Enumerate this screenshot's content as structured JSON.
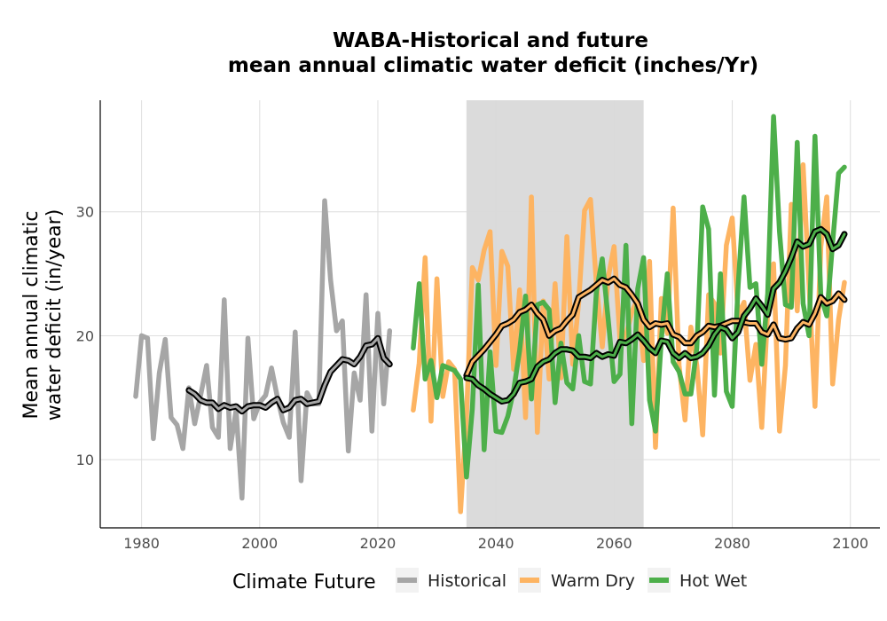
{
  "chart_data": {
    "type": "line",
    "title_line1": "WABA-Historical and future",
    "title_line2": "mean annual climatic water deficit (inches/Yr)",
    "ylabel_line1": "Mean annual climatic",
    "ylabel_line2": "water deficit (in/year)",
    "xlabel": "",
    "xlim": [
      1973,
      2105
    ],
    "ylim": [
      4.5,
      39.0
    ],
    "xticks": [
      1980,
      2000,
      2020,
      2040,
      2060,
      2080,
      2100
    ],
    "yticks": [
      10,
      20,
      30
    ],
    "grid": true,
    "shaded_period": [
      2035,
      2065
    ],
    "legend": {
      "title": "Climate Future",
      "position": "bottom",
      "items": [
        {
          "label": "Historical",
          "color": "#a6a6a6"
        },
        {
          "label": "Warm Dry",
          "color": "#fdb462"
        },
        {
          "label": "Hot Wet",
          "color": "#4daf4a"
        }
      ]
    },
    "series": [
      {
        "name": "Historical",
        "color": "#a6a6a6",
        "x": [
          1979,
          1980,
          1981,
          1982,
          1983,
          1984,
          1985,
          1986,
          1987,
          1988,
          1989,
          1990,
          1991,
          1992,
          1993,
          1994,
          1995,
          1996,
          1997,
          1998,
          1999,
          2000,
          2001,
          2002,
          2003,
          2004,
          2005,
          2006,
          2007,
          2008,
          2009,
          2010,
          2011,
          2012,
          2013,
          2014,
          2015,
          2016,
          2017,
          2018,
          2019,
          2020,
          2021,
          2022
        ],
        "values": [
          15.1,
          20.0,
          19.8,
          11.7,
          17.0,
          19.7,
          13.4,
          12.8,
          10.9,
          15.8,
          12.9,
          15.2,
          17.6,
          12.6,
          11.8,
          22.9,
          10.9,
          14.0,
          6.9,
          19.8,
          13.3,
          14.6,
          15.2,
          17.4,
          15.0,
          13.0,
          11.8,
          20.3,
          8.3,
          15.4,
          14.5,
          14.5,
          30.9,
          24.5,
          20.4,
          21.2,
          10.7,
          17.0,
          14.8,
          23.3,
          12.3,
          21.8,
          14.5,
          20.4
        ]
      },
      {
        "name": "Historical smoothed",
        "color": "#000000",
        "x": [
          1988,
          1989,
          1990,
          1991,
          1992,
          1993,
          1994,
          1995,
          1996,
          1997,
          1998,
          1999,
          2000,
          2001,
          2002,
          2003,
          2004,
          2005,
          2006,
          2007,
          2008,
          2009,
          2010,
          2011,
          2012,
          2013,
          2014,
          2015,
          2016,
          2017,
          2018,
          2019,
          2020,
          2021,
          2022
        ],
        "values": [
          15.6,
          15.3,
          14.8,
          14.6,
          14.6,
          14.1,
          14.4,
          14.2,
          14.3,
          13.9,
          14.3,
          14.4,
          14.4,
          14.2,
          14.6,
          14.9,
          14.0,
          14.2,
          14.8,
          14.9,
          14.5,
          14.6,
          14.7,
          16.0,
          17.1,
          17.6,
          18.1,
          18.0,
          17.7,
          18.3,
          19.2,
          19.3,
          19.8,
          18.2,
          17.7
        ]
      },
      {
        "name": "Warm Dry",
        "color": "#fdb462",
        "x": [
          2026,
          2027,
          2028,
          2029,
          2030,
          2031,
          2032,
          2033,
          2034,
          2035,
          2036,
          2037,
          2038,
          2039,
          2040,
          2041,
          2042,
          2043,
          2044,
          2045,
          2046,
          2047,
          2048,
          2049,
          2050,
          2051,
          2052,
          2053,
          2054,
          2055,
          2056,
          2057,
          2058,
          2059,
          2060,
          2061,
          2062,
          2063,
          2064,
          2065,
          2066,
          2067,
          2068,
          2069,
          2070,
          2071,
          2072,
          2073,
          2074,
          2075,
          2076,
          2077,
          2078,
          2079,
          2080,
          2081,
          2082,
          2083,
          2084,
          2085,
          2086,
          2087,
          2088,
          2089,
          2090,
          2091,
          2092,
          2093,
          2094,
          2095,
          2096,
          2097,
          2098,
          2099
        ],
        "values": [
          14.0,
          17.8,
          26.3,
          13.1,
          24.6,
          15.1,
          17.9,
          17.3,
          5.8,
          13.5,
          25.5,
          24.5,
          26.9,
          28.4,
          17.6,
          26.8,
          25.6,
          17.3,
          23.7,
          13.4,
          31.2,
          12.2,
          22.8,
          16.5,
          24.2,
          16.6,
          28.0,
          17.7,
          22.7,
          30.1,
          31.0,
          24.2,
          19.1,
          24.7,
          27.2,
          19.6,
          20.0,
          21.9,
          23.0,
          18.0,
          26.0,
          11.0,
          23.0,
          20.2,
          30.3,
          17.6,
          13.2,
          20.7,
          17.6,
          12.0,
          23.3,
          22.6,
          18.6,
          27.3,
          29.5,
          21.6,
          22.7,
          16.4,
          19.3,
          12.6,
          22.0,
          25.8,
          12.3,
          17.6,
          30.6,
          22.0,
          33.8,
          24.1,
          14.3,
          27.2,
          31.2,
          16.1,
          21.3,
          24.3
        ]
      },
      {
        "name": "Warm Dry smoothed",
        "color": "#000000",
        "x": [
          2035,
          2036,
          2037,
          2038,
          2039,
          2040,
          2041,
          2042,
          2043,
          2044,
          2045,
          2046,
          2047,
          2048,
          2049,
          2050,
          2051,
          2052,
          2053,
          2054,
          2055,
          2056,
          2057,
          2058,
          2059,
          2060,
          2061,
          2062,
          2063,
          2064,
          2065,
          2066,
          2067,
          2068,
          2069,
          2070,
          2071,
          2072,
          2073,
          2074,
          2075,
          2076,
          2077,
          2078,
          2079,
          2080,
          2081,
          2082,
          2083,
          2084,
          2085,
          2086,
          2087,
          2088,
          2089,
          2090,
          2091,
          2092,
          2093,
          2094,
          2095,
          2096,
          2097,
          2098,
          2099
        ],
        "values": [
          16.8,
          17.9,
          18.4,
          18.9,
          19.5,
          20.1,
          20.8,
          21.0,
          21.3,
          21.9,
          22.1,
          22.5,
          21.8,
          21.3,
          20.0,
          20.4,
          20.6,
          21.2,
          21.7,
          23.1,
          23.4,
          23.7,
          24.1,
          24.5,
          24.3,
          24.6,
          24.1,
          23.9,
          23.3,
          22.6,
          21.3,
          20.7,
          21.0,
          20.9,
          21.0,
          20.1,
          19.9,
          19.4,
          19.4,
          20.0,
          20.3,
          20.8,
          20.7,
          20.8,
          21.0,
          21.2,
          21.2,
          21.1,
          21.0,
          21.0,
          20.3,
          20.1,
          20.9,
          19.8,
          19.7,
          19.8,
          20.6,
          21.1,
          20.9,
          21.8,
          23.1,
          22.6,
          22.8,
          23.4,
          22.9
        ]
      },
      {
        "name": "Hot Wet",
        "color": "#4daf4a",
        "x": [
          2026,
          2027,
          2028,
          2029,
          2030,
          2031,
          2032,
          2033,
          2034,
          2035,
          2036,
          2037,
          2038,
          2039,
          2040,
          2041,
          2042,
          2043,
          2044,
          2045,
          2046,
          2047,
          2048,
          2049,
          2050,
          2051,
          2052,
          2053,
          2054,
          2055,
          2056,
          2057,
          2058,
          2059,
          2060,
          2061,
          2062,
          2063,
          2064,
          2065,
          2066,
          2067,
          2068,
          2069,
          2070,
          2071,
          2072,
          2073,
          2074,
          2075,
          2076,
          2077,
          2078,
          2079,
          2080,
          2081,
          2082,
          2083,
          2084,
          2085,
          2086,
          2087,
          2088,
          2089,
          2090,
          2091,
          2092,
          2093,
          2094,
          2095,
          2096,
          2097,
          2098,
          2099
        ],
        "values": [
          19.0,
          24.2,
          16.5,
          18.0,
          15.0,
          17.6,
          17.4,
          17.2,
          16.5,
          8.6,
          14.1,
          24.1,
          10.8,
          18.7,
          12.3,
          12.2,
          13.5,
          15.6,
          18.8,
          23.2,
          14.9,
          22.5,
          22.7,
          22.1,
          14.6,
          19.4,
          16.2,
          15.7,
          20.0,
          16.3,
          16.1,
          23.6,
          26.2,
          21.3,
          16.3,
          16.9,
          27.3,
          12.9,
          23.8,
          26.3,
          14.8,
          12.3,
          19.7,
          25.0,
          17.9,
          17.1,
          15.3,
          15.3,
          19.0,
          30.4,
          28.6,
          15.2,
          25.0,
          15.5,
          14.3,
          24.1,
          31.2,
          23.9,
          24.2,
          17.7,
          23.4,
          37.7,
          28.4,
          22.5,
          22.3,
          35.6,
          22.6,
          20.0,
          36.1,
          23.2,
          21.6,
          27.5,
          33.1,
          33.6
        ]
      },
      {
        "name": "Hot Wet smoothed",
        "color": "#000000",
        "x": [
          2035,
          2036,
          2037,
          2038,
          2039,
          2040,
          2041,
          2042,
          2043,
          2044,
          2045,
          2046,
          2047,
          2048,
          2049,
          2050,
          2051,
          2052,
          2053,
          2054,
          2055,
          2056,
          2057,
          2058,
          2059,
          2060,
          2061,
          2062,
          2063,
          2064,
          2065,
          2066,
          2067,
          2068,
          2069,
          2070,
          2071,
          2072,
          2073,
          2074,
          2075,
          2076,
          2077,
          2078,
          2079,
          2080,
          2081,
          2082,
          2083,
          2084,
          2085,
          2086,
          2087,
          2088,
          2089,
          2090,
          2091,
          2092,
          2093,
          2094,
          2095,
          2096,
          2097,
          2098,
          2099
        ],
        "values": [
          16.6,
          16.5,
          16.0,
          15.7,
          15.3,
          15.0,
          14.7,
          14.8,
          15.3,
          16.2,
          16.3,
          16.5,
          17.5,
          17.9,
          18.1,
          18.6,
          18.9,
          18.9,
          18.8,
          18.3,
          18.3,
          18.2,
          18.6,
          18.3,
          18.5,
          18.4,
          19.5,
          19.4,
          19.7,
          20.1,
          19.6,
          19.0,
          18.6,
          19.6,
          19.5,
          18.6,
          18.2,
          18.6,
          18.2,
          18.3,
          18.6,
          19.2,
          20.1,
          20.7,
          20.5,
          19.8,
          20.3,
          21.6,
          22.2,
          23.0,
          22.4,
          21.7,
          23.8,
          24.3,
          25.2,
          26.3,
          27.6,
          27.2,
          27.4,
          28.4,
          28.6,
          28.2,
          27.0,
          27.3,
          28.2
        ]
      }
    ]
  }
}
